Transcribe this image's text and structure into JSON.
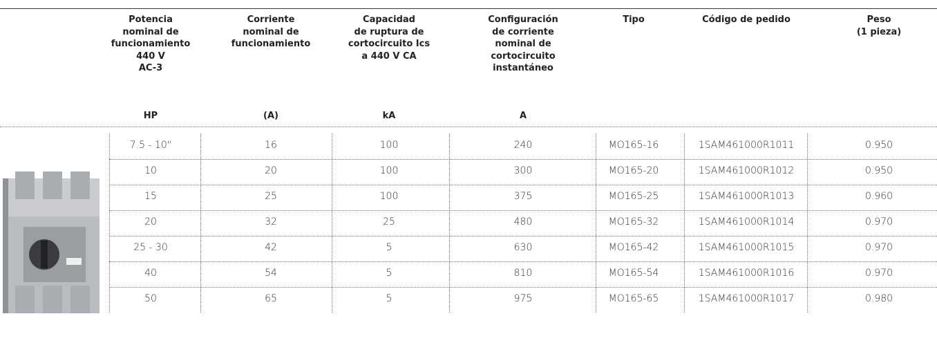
{
  "table": {
    "header": [
      [
        "Potencia",
        "nominal de",
        "funcionamiento",
        "440 V",
        "AC-3"
      ],
      [
        "Corriente",
        "nominal de",
        "funcionamiento"
      ],
      [
        "Capacidad",
        "de ruptura de",
        "cortocircuito Ics",
        "a 440 V CA"
      ],
      [
        "Configuración",
        "de corriente",
        "nominal de",
        "cortocircuito",
        "instantáneo"
      ],
      [
        "Tipo"
      ],
      [
        "Código de pedido"
      ],
      [
        "Peso",
        "(1 pieza)"
      ]
    ],
    "units": [
      "HP",
      "(A)",
      "kA",
      "A"
    ],
    "rows": [
      [
        "7.5 - 10\"",
        "16",
        "100",
        "240",
        "MO165-16",
        "1SAM461000R1011",
        "0.950"
      ],
      [
        "10",
        "20",
        "100",
        "300",
        "MO165-20",
        "1SAM461000R1012",
        "0.950"
      ],
      [
        "15",
        "25",
        "100",
        "375",
        "MO165-25",
        "1SAM461000R1013",
        "0.960"
      ],
      [
        "20",
        "32",
        "25",
        "480",
        "MO165-32",
        "1SAM461000R1014",
        "0.970"
      ],
      [
        "25 - 30",
        "42",
        "5",
        "630",
        "MO165-42",
        "1SAM461000R1015",
        "0.970"
      ],
      [
        "40",
        "54",
        "5",
        "810",
        "MO165-54",
        "1SAM461000R1016",
        "0.970"
      ],
      [
        "50",
        "65",
        "5",
        "975",
        "MO165-65",
        "1SAM461000R1017",
        "0.980"
      ]
    ]
  }
}
